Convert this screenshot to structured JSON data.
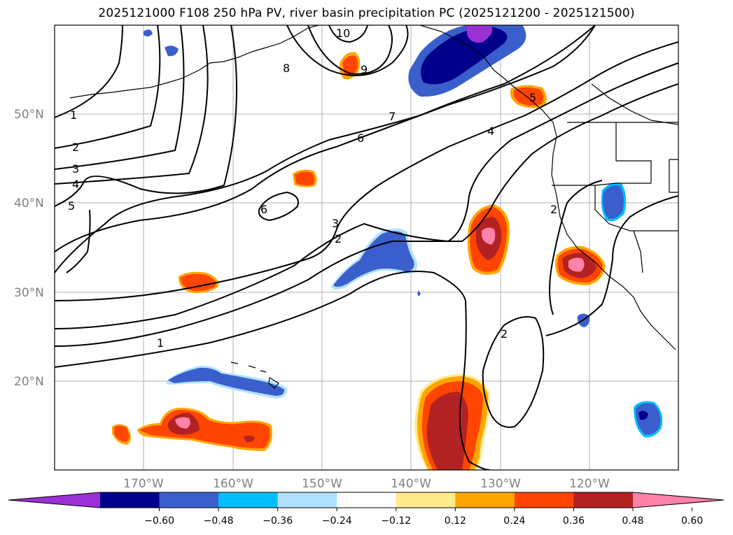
{
  "title": "2025121000 F108 250 hPa PV, river basin precipitation PC (2025121200 - 2025121500)",
  "lat_labels": [
    "50°N",
    "40°N",
    "30°N",
    "20°N"
  ],
  "lon_labels": [
    "170°W",
    "160°W",
    "150°W",
    "140°W",
    "130°W",
    "120°W"
  ],
  "contour_labels": [
    "1",
    "2",
    "3",
    "4",
    "5",
    "10",
    "9",
    "8",
    "7",
    "6",
    "6",
    "4",
    "3",
    "2",
    "2",
    "1",
    "5",
    "2"
  ],
  "colorbar": {
    "ticks": [
      "−0.60",
      "−0.48",
      "−0.36",
      "−0.24",
      "−0.12",
      "0.12",
      "0.24",
      "0.36",
      "0.48",
      "0.60"
    ],
    "colors": [
      "#9b30d6",
      "#00008b",
      "#3a5fcd",
      "#00bfff",
      "#b0e2ff",
      "#ffffff",
      "#ffea8c",
      "#ffa500",
      "#ff4500",
      "#b22222",
      "#ff82ab"
    ]
  }
}
